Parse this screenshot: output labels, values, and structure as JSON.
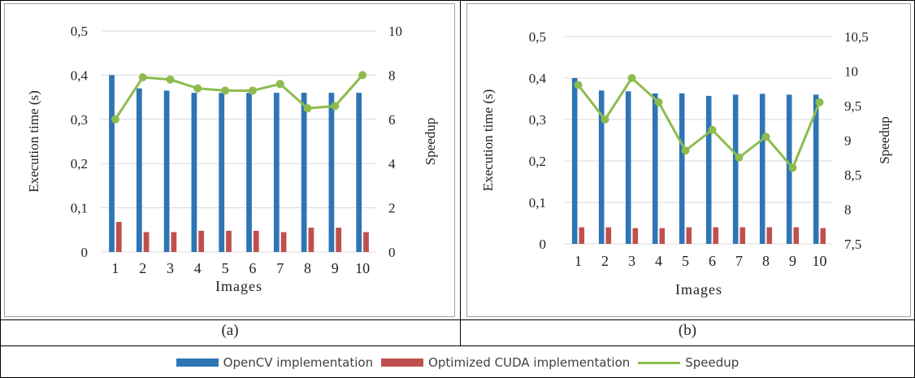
{
  "colors": {
    "opencv": "#2E75B6",
    "cuda": "#C0504D",
    "speedup": "#8DBB4E",
    "grid": "#D9D9D9",
    "axis_text": "#222222"
  },
  "captions": {
    "a": "(a)",
    "b": "(b)"
  },
  "legend": {
    "opencv": "OpenCV implementation",
    "cuda": "Optimized CUDA implementation",
    "speedup": "Speedup"
  },
  "chart_data": [
    {
      "type": "bar",
      "panel": "a",
      "categories": [
        "1",
        "2",
        "3",
        "4",
        "5",
        "6",
        "7",
        "8",
        "9",
        "10"
      ],
      "series": [
        {
          "name": "OpenCV implementation",
          "axis": "left",
          "type": "bar",
          "values": [
            0.4,
            0.37,
            0.365,
            0.36,
            0.36,
            0.36,
            0.36,
            0.36,
            0.36,
            0.36
          ]
        },
        {
          "name": "Optimized CUDA implementation",
          "axis": "left",
          "type": "bar",
          "values": [
            0.068,
            0.045,
            0.045,
            0.048,
            0.048,
            0.048,
            0.045,
            0.055,
            0.055,
            0.045
          ]
        },
        {
          "name": "Speedup",
          "axis": "right",
          "type": "line",
          "values": [
            6.0,
            7.9,
            7.8,
            7.4,
            7.3,
            7.3,
            7.6,
            6.5,
            6.6,
            8.0
          ]
        }
      ],
      "xlabel": "Images",
      "ylabel": "Execution time (s)",
      "y2label": "Speedup",
      "ylim": [
        0,
        0.5
      ],
      "yticks": [
        "0",
        "0,1",
        "0,2",
        "0,3",
        "0,4",
        "0,5"
      ],
      "y2lim": [
        0,
        10
      ],
      "y2ticks": [
        "0",
        "2",
        "4",
        "6",
        "8",
        "10"
      ],
      "grid": true
    },
    {
      "type": "bar",
      "panel": "b",
      "categories": [
        "1",
        "2",
        "3",
        "4",
        "5",
        "6",
        "7",
        "8",
        "9",
        "10"
      ],
      "series": [
        {
          "name": "OpenCV implementation",
          "axis": "left",
          "type": "bar",
          "values": [
            0.4,
            0.37,
            0.368,
            0.363,
            0.363,
            0.357,
            0.36,
            0.362,
            0.36,
            0.36
          ]
        },
        {
          "name": "Optimized CUDA implementation",
          "axis": "left",
          "type": "bar",
          "values": [
            0.04,
            0.04,
            0.038,
            0.038,
            0.04,
            0.04,
            0.04,
            0.04,
            0.04,
            0.038
          ]
        },
        {
          "name": "Speedup",
          "axis": "right",
          "type": "line",
          "values": [
            9.8,
            9.3,
            9.9,
            9.55,
            8.85,
            9.15,
            8.75,
            9.05,
            8.6,
            9.55
          ]
        }
      ],
      "xlabel": "Images",
      "ylabel": "Execution time (s)",
      "y2label": "Speedup",
      "ylim": [
        0,
        0.5
      ],
      "yticks": [
        "0",
        "0,1",
        "0,2",
        "0,3",
        "0,4",
        "0,5"
      ],
      "y2lim": [
        7.5,
        10.5
      ],
      "y2ticks": [
        "7,5",
        "8",
        "8,5",
        "9",
        "9,5",
        "10",
        "10,5"
      ],
      "grid": true
    }
  ]
}
